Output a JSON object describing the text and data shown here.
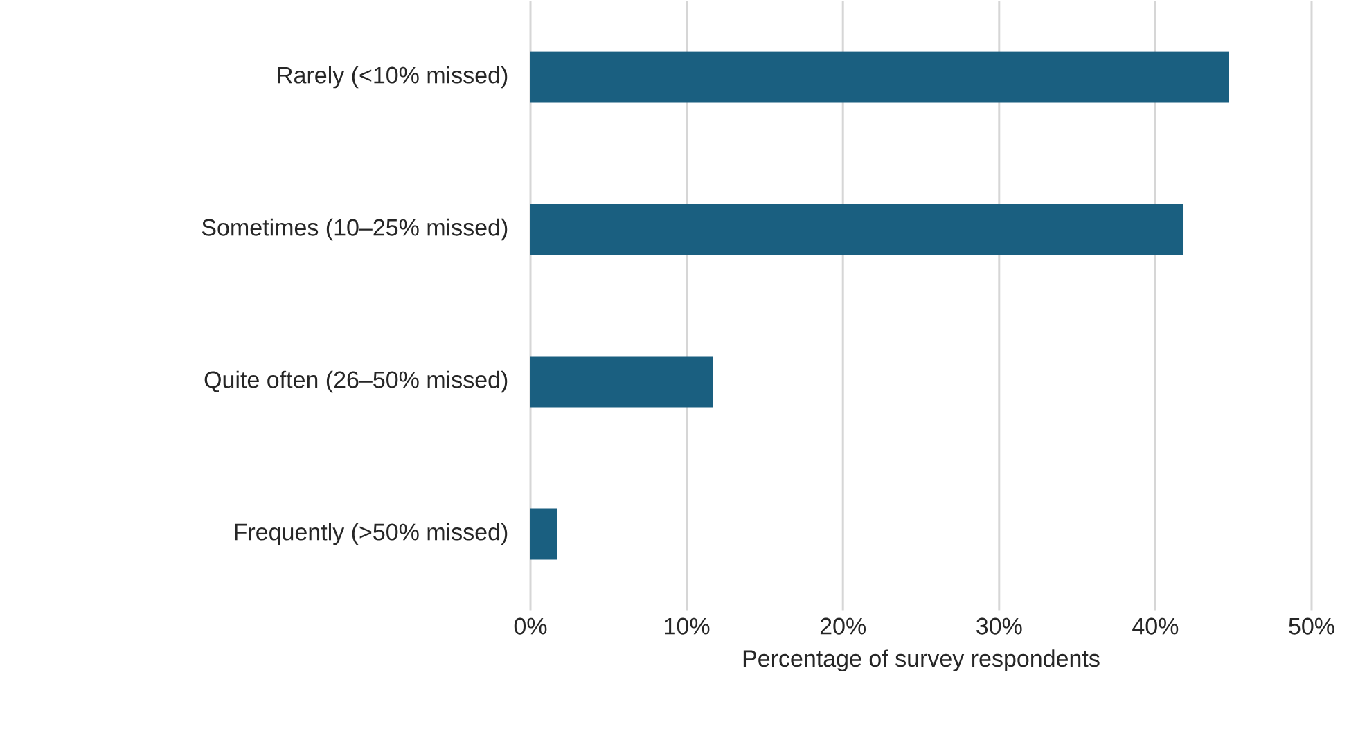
{
  "chart_data": {
    "type": "bar",
    "orientation": "horizontal",
    "xlabel": "Percentage of survey respondents",
    "categories": [
      "Rarely (<10% missed)",
      "Sometimes (10–25% missed)",
      "Quite often (26–50% missed)",
      "Frequently (>50% missed)"
    ],
    "values": [
      44.7,
      41.8,
      11.7,
      1.7
    ],
    "color": "#1a5f80",
    "xlim": [
      0,
      50
    ],
    "xticks": [
      {
        "value": 0,
        "label": "0%"
      },
      {
        "value": 10,
        "label": "10%"
      },
      {
        "value": 20,
        "label": "20%"
      },
      {
        "value": 30,
        "label": "30%"
      },
      {
        "value": 40,
        "label": "40%"
      },
      {
        "value": 50,
        "label": "50%"
      }
    ],
    "grid": "x"
  }
}
